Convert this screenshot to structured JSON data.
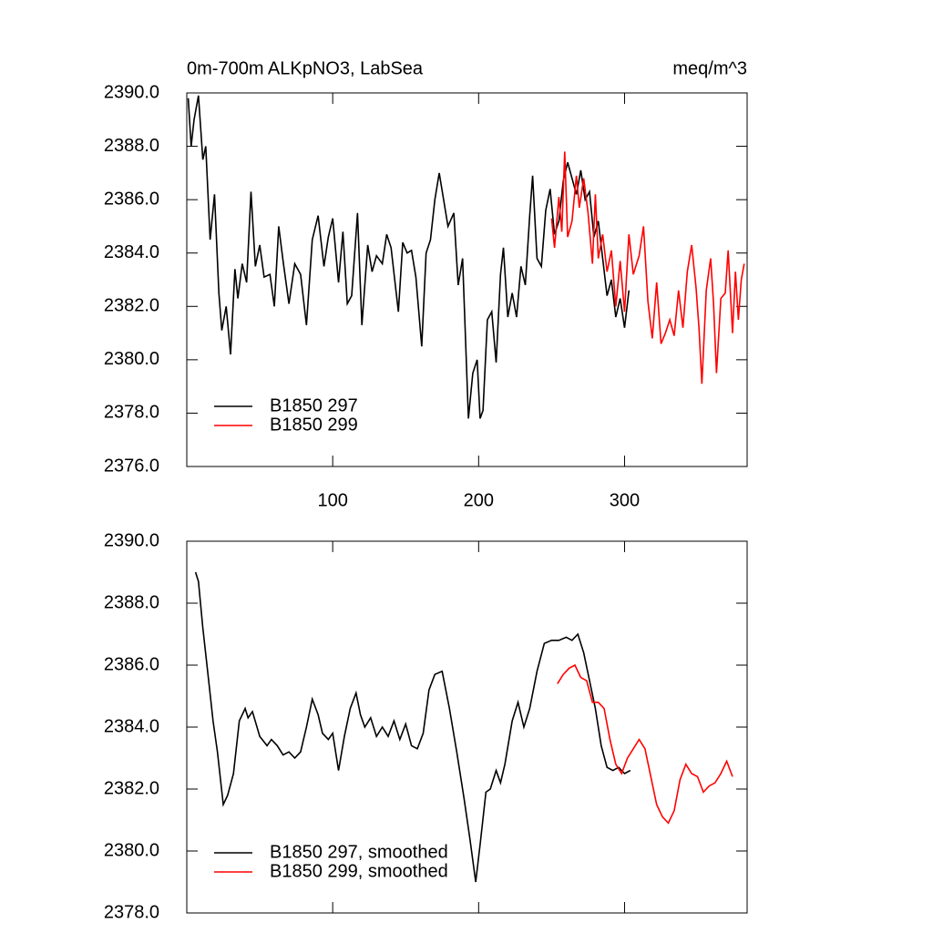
{
  "chart_data": [
    {
      "type": "line",
      "title": "0m-700m ALKpNO3, LabSea",
      "units": "meq/m^3",
      "xlim": [
        0,
        384
      ],
      "xticks": [
        100,
        200,
        300
      ],
      "ylim": [
        2376,
        2390
      ],
      "yticks": [
        {
          "value": 2376,
          "label": "2376.0"
        },
        {
          "value": 2378,
          "label": "2378.0"
        },
        {
          "value": 2380,
          "label": "2380.0"
        },
        {
          "value": 2382,
          "label": "2382.0"
        },
        {
          "value": 2384,
          "label": "2384.0"
        },
        {
          "value": 2386,
          "label": "2386.0"
        },
        {
          "value": 2388,
          "label": "2388.0"
        },
        {
          "value": 2390,
          "label": "2390.0"
        }
      ],
      "legend": "lower left",
      "series": [
        {
          "name": "B1850 297",
          "color": "#000000",
          "x": [
            1,
            3,
            5,
            8,
            11,
            13,
            16,
            19,
            22,
            24,
            27,
            30,
            33,
            35,
            38,
            41,
            44,
            47,
            50,
            53,
            57,
            60,
            63,
            66,
            70,
            74,
            78,
            82,
            86,
            90,
            94,
            97,
            100,
            104,
            107,
            110,
            113,
            117,
            120,
            124,
            127,
            130,
            134,
            137,
            140,
            145,
            148,
            151,
            154,
            157,
            161,
            164,
            167,
            170,
            173,
            176,
            179,
            183,
            186,
            189,
            193,
            196,
            199,
            201,
            203,
            206,
            209,
            212,
            215,
            217,
            220,
            223,
            226,
            229,
            232,
            235,
            237,
            240,
            243,
            246,
            249,
            252,
            255,
            258,
            261,
            264,
            267,
            270,
            273,
            276,
            279,
            282,
            285,
            288,
            291,
            294,
            297,
            300,
            303
          ],
          "values": [
            2389.8,
            2388,
            2389,
            2389.9,
            2387.5,
            2388,
            2384.5,
            2386.2,
            2382.5,
            2381.1,
            2382,
            2380.2,
            2383.4,
            2382.3,
            2383.6,
            2382.9,
            2386.3,
            2383.5,
            2384.3,
            2383.1,
            2383.2,
            2382,
            2385,
            2383.7,
            2382.1,
            2383.6,
            2383.2,
            2381.3,
            2384.5,
            2385.4,
            2383.5,
            2384.6,
            2385.3,
            2382.9,
            2384.8,
            2382.1,
            2382.4,
            2385.5,
            2381.3,
            2384.3,
            2383.3,
            2383.9,
            2383.6,
            2384.7,
            2384.2,
            2381.8,
            2384.4,
            2384,
            2384.1,
            2383.1,
            2380.5,
            2384,
            2384.5,
            2386,
            2387,
            2386,
            2385,
            2385.5,
            2382.8,
            2383.8,
            2377.8,
            2379.5,
            2380,
            2377.8,
            2378.1,
            2381.5,
            2381.8,
            2379.9,
            2383.2,
            2384.2,
            2381.6,
            2382.5,
            2381.6,
            2383.5,
            2382.8,
            2385.4,
            2386.9,
            2383.8,
            2383.5,
            2385.6,
            2386.4,
            2384.7,
            2385.2,
            2386.7,
            2387.4,
            2386.8,
            2386.2,
            2387.1,
            2386,
            2386.3,
            2384.6,
            2385.2,
            2383.8,
            2382.4,
            2383,
            2381.6,
            2382.3,
            2381.2,
            2382.6
          ]
        },
        {
          "name": "B1850 299",
          "color": "#ff0000",
          "x": [
            250,
            252,
            255,
            257,
            259,
            261,
            264,
            267,
            269,
            272,
            275,
            278,
            280,
            282,
            285,
            288,
            291,
            294,
            297,
            300,
            303,
            306,
            310,
            313,
            316,
            319,
            322,
            325,
            328,
            331,
            334,
            337,
            340,
            343,
            346,
            349,
            351,
            353,
            356,
            359,
            361,
            363,
            366,
            369,
            371,
            374,
            376,
            378,
            380,
            382
          ],
          "values": [
            2385.3,
            2384.2,
            2386.1,
            2384.8,
            2387.8,
            2384.6,
            2385.2,
            2386.9,
            2385.7,
            2386.8,
            2385.5,
            2383.6,
            2386.2,
            2383.8,
            2384.7,
            2383.3,
            2384.1,
            2382,
            2383.7,
            2381.8,
            2384.7,
            2383.2,
            2383.9,
            2385,
            2382.2,
            2380.8,
            2382.9,
            2380.6,
            2381,
            2381.5,
            2380.9,
            2382.6,
            2381.2,
            2383.3,
            2384.3,
            2382.7,
            2381.2,
            2379.1,
            2382.6,
            2383.8,
            2382.1,
            2379.5,
            2382.3,
            2382.5,
            2384.1,
            2381,
            2383.3,
            2381.5,
            2383,
            2383.6
          ]
        }
      ]
    },
    {
      "type": "line",
      "xlim": [
        0,
        384
      ],
      "ylim": [
        2378,
        2390
      ],
      "yticks": [
        {
          "value": 2378,
          "label": "2378.0"
        },
        {
          "value": 2380,
          "label": "2380.0"
        },
        {
          "value": 2382,
          "label": "2382.0"
        },
        {
          "value": 2384,
          "label": "2384.0"
        },
        {
          "value": 2386,
          "label": "2386.0"
        },
        {
          "value": 2388,
          "label": "2388.0"
        },
        {
          "value": 2390,
          "label": "2390.0"
        }
      ],
      "legend": "lower left",
      "series": [
        {
          "name": "B1850 297, smoothed",
          "color": "#000000",
          "x": [
            6,
            8,
            11,
            15,
            18,
            21,
            25,
            28,
            32,
            36,
            40,
            42,
            45,
            50,
            55,
            58,
            62,
            66,
            70,
            74,
            78,
            82,
            86,
            90,
            93,
            97,
            100,
            104,
            108,
            112,
            116,
            119,
            122,
            126,
            130,
            134,
            138,
            142,
            146,
            150,
            154,
            158,
            162,
            166,
            170,
            175,
            180,
            185,
            190,
            194,
            198,
            201,
            205,
            208,
            212,
            215,
            218,
            223,
            227,
            231,
            235,
            240,
            245,
            250,
            255,
            260,
            264,
            268,
            272,
            276,
            280,
            284,
            288,
            292,
            296,
            300,
            304
          ],
          "values": [
            2389,
            2388.7,
            2387.2,
            2385.5,
            2384.2,
            2383.2,
            2381.5,
            2381.8,
            2382.5,
            2384.2,
            2384.6,
            2384.3,
            2384.5,
            2383.7,
            2383.4,
            2383.6,
            2383.4,
            2383.1,
            2383.2,
            2383,
            2383.2,
            2384,
            2384.9,
            2384.4,
            2383.8,
            2383.6,
            2383.8,
            2382.6,
            2383.7,
            2384.6,
            2385.1,
            2384.4,
            2384,
            2384.3,
            2383.7,
            2384,
            2383.7,
            2384.2,
            2383.6,
            2384.1,
            2383.4,
            2383.3,
            2383.8,
            2385.2,
            2385.7,
            2385.8,
            2384.6,
            2383.2,
            2381.7,
            2380.4,
            2379,
            2380.2,
            2381.9,
            2382,
            2382.6,
            2382.2,
            2382.8,
            2384.2,
            2384.8,
            2384,
            2384.6,
            2385.8,
            2386.7,
            2386.8,
            2386.8,
            2386.9,
            2386.8,
            2387,
            2386.4,
            2385.5,
            2384.6,
            2383.4,
            2382.7,
            2382.6,
            2382.7,
            2382.5,
            2382.6
          ]
        },
        {
          "name": "B1850 299, smoothed",
          "color": "#ff0000",
          "x": [
            254,
            258,
            262,
            266,
            270,
            274,
            278,
            282,
            286,
            290,
            294,
            298,
            302,
            306,
            310,
            314,
            318,
            322,
            326,
            330,
            334,
            338,
            342,
            346,
            350,
            354,
            358,
            362,
            366,
            370,
            374
          ],
          "values": [
            2385.4,
            2385.7,
            2385.9,
            2386,
            2385.6,
            2385.5,
            2384.8,
            2384.8,
            2384.6,
            2383.6,
            2382.8,
            2382.5,
            2383,
            2383.3,
            2383.6,
            2383.3,
            2382.4,
            2381.5,
            2381.1,
            2380.9,
            2381.3,
            2382.3,
            2382.8,
            2382.5,
            2382.4,
            2381.9,
            2382.1,
            2382.2,
            2382.5,
            2382.9,
            2382.4
          ]
        }
      ]
    }
  ]
}
